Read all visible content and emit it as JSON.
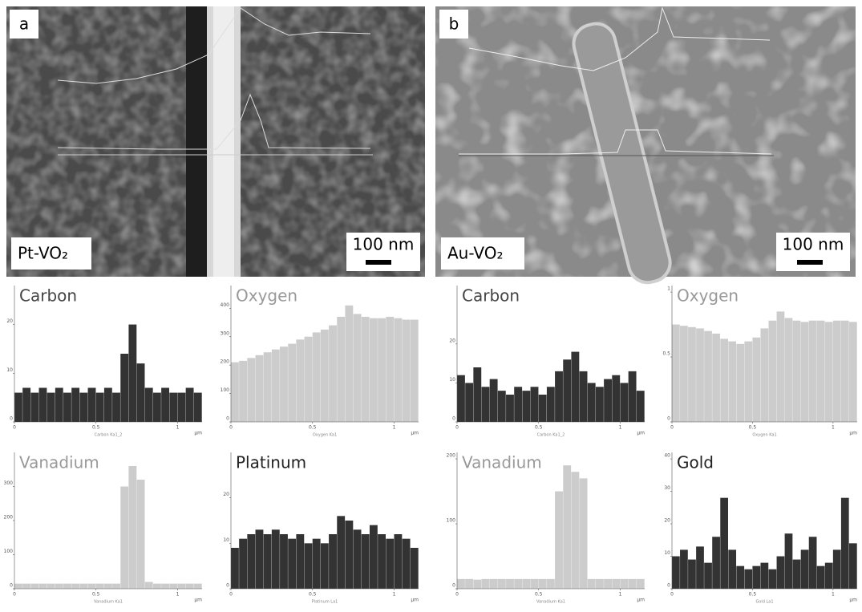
{
  "panels": [
    {
      "label": "a",
      "sample": "Pt-VO₂",
      "scale_bar": "100 nm"
    },
    {
      "label": "b",
      "sample": "Au-VO₂",
      "scale_bar": "100 nm"
    }
  ],
  "chart_data": [
    {
      "type": "histogram",
      "title": "Carbon",
      "color": "#333333",
      "title_color": "#444444",
      "xlabel": "Carbon Ka1_2",
      "xunit": "µm",
      "bins": [
        0,
        0.05,
        0.1,
        0.15,
        0.2,
        0.25,
        0.3,
        0.35,
        0.4,
        0.45,
        0.5,
        0.55,
        0.6,
        0.65,
        0.7,
        0.75,
        0.8,
        0.85,
        0.9,
        0.95,
        1,
        1.05,
        1.1,
        1.15
      ],
      "values": [
        6,
        7,
        6,
        7,
        6,
        7,
        6,
        7,
        6,
        7,
        6,
        7,
        6,
        14,
        20,
        12,
        7,
        6,
        7,
        6,
        6,
        7,
        6
      ],
      "xlim": [
        0,
        1.15
      ],
      "xticks": [
        0,
        0.5,
        1
      ],
      "ylim": [
        0,
        28
      ],
      "yticks": [
        0,
        10,
        20
      ]
    },
    {
      "type": "histogram",
      "title": "Oxygen",
      "color": "#cccccc",
      "title_color": "#999999",
      "xlabel": "Oxygen Ka1",
      "xunit": "µm",
      "bins": [
        0,
        0.05,
        0.1,
        0.15,
        0.2,
        0.25,
        0.3,
        0.35,
        0.4,
        0.45,
        0.5,
        0.55,
        0.6,
        0.65,
        0.7,
        0.75,
        0.8,
        0.85,
        0.9,
        0.95,
        1,
        1.05,
        1.1,
        1.15
      ],
      "values": [
        210,
        215,
        225,
        235,
        245,
        255,
        265,
        275,
        290,
        300,
        315,
        325,
        340,
        370,
        410,
        380,
        370,
        365,
        365,
        370,
        365,
        360,
        360
      ],
      "xlim": [
        0,
        1.15
      ],
      "xticks": [
        0,
        0.5,
        1
      ],
      "ylim": [
        0,
        480
      ],
      "yticks": [
        0,
        100,
        200,
        300,
        400
      ]
    },
    {
      "type": "histogram",
      "title": "Carbon",
      "color": "#333333",
      "title_color": "#444444",
      "xlabel": "Carbon Ka1_2",
      "xunit": "µm",
      "bins": [
        0,
        0.05,
        0.1,
        0.15,
        0.2,
        0.25,
        0.3,
        0.35,
        0.4,
        0.45,
        0.5,
        0.55,
        0.6,
        0.65,
        0.7,
        0.75,
        0.8,
        0.85,
        0.9,
        0.95,
        1,
        1.05,
        1.1,
        1.15
      ],
      "values": [
        12,
        10,
        14,
        9,
        11,
        8,
        7,
        9,
        8,
        9,
        7,
        9,
        13,
        16,
        18,
        13,
        10,
        9,
        11,
        12,
        10,
        13,
        8
      ],
      "xlim": [
        0,
        1.15
      ],
      "xticks": [
        0,
        0.5,
        1
      ],
      "ylim": [
        0,
        35
      ],
      "yticks": [
        0,
        10,
        20
      ]
    },
    {
      "type": "histogram",
      "title": "Oxygen",
      "color": "#cccccc",
      "title_color": "#999999",
      "xlabel": "Oxygen Ka1",
      "xunit": "µm",
      "bins": [
        0,
        0.05,
        0.1,
        0.15,
        0.2,
        0.25,
        0.3,
        0.35,
        0.4,
        0.45,
        0.5,
        0.55,
        0.6,
        0.65,
        0.7,
        0.75,
        0.8,
        0.85,
        0.9,
        0.95,
        1,
        1.05,
        1.1,
        1.15
      ],
      "values": [
        0.75,
        0.74,
        0.73,
        0.72,
        0.7,
        0.68,
        0.64,
        0.62,
        0.6,
        0.62,
        0.65,
        0.72,
        0.78,
        0.85,
        0.8,
        0.78,
        0.77,
        0.78,
        0.78,
        0.77,
        0.78,
        0.78,
        0.77
      ],
      "xlim": [
        0,
        1.15
      ],
      "xticks": [
        0,
        0.5,
        1
      ],
      "ylim": [
        0,
        1.05
      ],
      "yticks": [
        0,
        0.5,
        1
      ]
    },
    {
      "type": "histogram",
      "title": "Vanadium",
      "color": "#cccccc",
      "title_color": "#999999",
      "xlabel": "Vanadium Ka1",
      "xunit": "µm",
      "bins": [
        0,
        0.05,
        0.1,
        0.15,
        0.2,
        0.25,
        0.3,
        0.35,
        0.4,
        0.45,
        0.5,
        0.55,
        0.6,
        0.65,
        0.7,
        0.75,
        0.8,
        0.85,
        0.9,
        0.95,
        1,
        1.05,
        1.1,
        1.15
      ],
      "values": [
        15,
        15,
        15,
        15,
        15,
        15,
        15,
        15,
        15,
        15,
        15,
        15,
        15,
        300,
        360,
        320,
        20,
        15,
        15,
        15,
        15,
        15,
        15
      ],
      "xlim": [
        0,
        1.15
      ],
      "xticks": [
        0,
        0.5,
        1
      ],
      "ylim": [
        0,
        400
      ],
      "yticks": [
        0,
        100,
        200,
        300
      ]
    },
    {
      "type": "histogram",
      "title": "Platinum",
      "color": "#333333",
      "title_color": "#222222",
      "xlabel": "Platinum La1",
      "xunit": "µm",
      "bins": [
        0,
        0.05,
        0.1,
        0.15,
        0.2,
        0.25,
        0.3,
        0.35,
        0.4,
        0.45,
        0.5,
        0.55,
        0.6,
        0.65,
        0.7,
        0.75,
        0.8,
        0.85,
        0.9,
        0.95,
        1,
        1.05,
        1.1,
        1.15
      ],
      "values": [
        9,
        11,
        12,
        13,
        12,
        13,
        12,
        11,
        12,
        10,
        11,
        10,
        12,
        16,
        15,
        13,
        12,
        14,
        12,
        11,
        12,
        11,
        9
      ],
      "xlim": [
        0,
        1.15
      ],
      "xticks": [
        0,
        0.5,
        1
      ],
      "ylim": [
        0,
        30
      ],
      "yticks": [
        0,
        10,
        20
      ]
    },
    {
      "type": "histogram",
      "title": "Vanadium",
      "color": "#cccccc",
      "title_color": "#999999",
      "xlabel": "Vanadium Ka1",
      "xunit": "µm",
      "bins": [
        0,
        0.05,
        0.1,
        0.15,
        0.2,
        0.25,
        0.3,
        0.35,
        0.4,
        0.45,
        0.5,
        0.55,
        0.6,
        0.65,
        0.7,
        0.75,
        0.8,
        0.85,
        0.9,
        0.95,
        1,
        1.05,
        1.1,
        1.15
      ],
      "values": [
        15,
        15,
        14,
        15,
        15,
        15,
        15,
        15,
        15,
        15,
        15,
        15,
        150,
        190,
        180,
        170,
        15,
        15,
        15,
        15,
        15,
        15,
        15
      ],
      "xlim": [
        0,
        1.15
      ],
      "xticks": [
        0,
        0.5,
        1
      ],
      "ylim": [
        0,
        210
      ],
      "yticks": [
        0,
        100,
        200
      ]
    },
    {
      "type": "histogram",
      "title": "Gold",
      "color": "#333333",
      "title_color": "#222222",
      "xlabel": "Gold La1",
      "xunit": "µm",
      "bins": [
        0,
        0.05,
        0.1,
        0.15,
        0.2,
        0.25,
        0.3,
        0.35,
        0.4,
        0.45,
        0.5,
        0.55,
        0.6,
        0.65,
        0.7,
        0.75,
        0.8,
        0.85,
        0.9,
        0.95,
        1,
        1.05,
        1.1,
        1.15
      ],
      "values": [
        10,
        12,
        9,
        13,
        8,
        16,
        28,
        12,
        7,
        6,
        7,
        8,
        6,
        10,
        17,
        9,
        12,
        16,
        7,
        8,
        12,
        28,
        14
      ],
      "xlim": [
        0,
        1.15
      ],
      "xticks": [
        0,
        0.5,
        1
      ],
      "ylim": [
        0,
        42
      ],
      "yticks": [
        0,
        10,
        20,
        30,
        40
      ]
    }
  ]
}
